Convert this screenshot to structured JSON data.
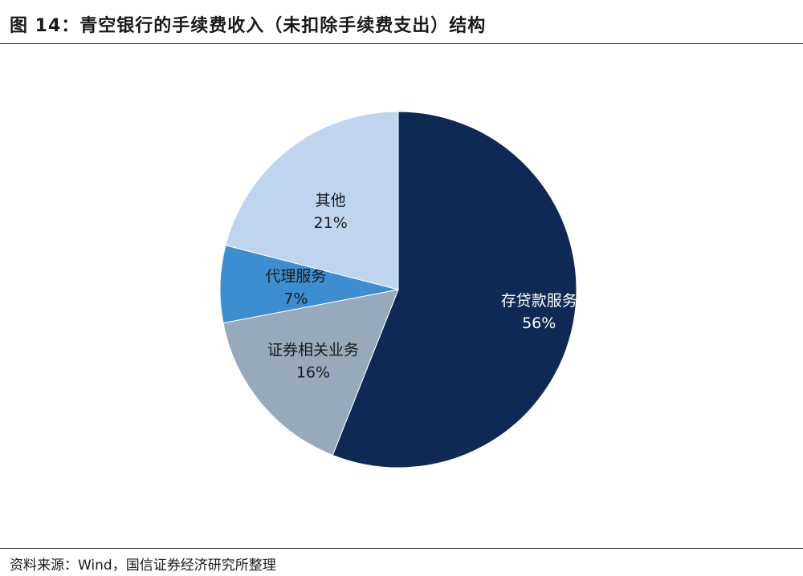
{
  "title": "图 14：青空银行的手续费收入（未扣除手续费支出）结构",
  "source": "资料来源：Wind，国信证券经济研究所整理",
  "chart_data": {
    "type": "pie",
    "title": "图 14：青空银行的手续费收入（未扣除手续费支出）结构",
    "slices": [
      {
        "label": "存贷款服务",
        "value": 56,
        "value_label": "56%",
        "color": "#0e2a54",
        "text_color": "#ffffff"
      },
      {
        "label": "证券相关业务",
        "value": 16,
        "value_label": "16%",
        "color": "#98a9bb",
        "text_color": "#1a1a1a"
      },
      {
        "label": "代理服务",
        "value": 7,
        "value_label": "7%",
        "color": "#3d8ed0",
        "text_color": "#1a1a1a"
      },
      {
        "label": "其他",
        "value": 21,
        "value_label": "21%",
        "color": "#bfd5ef",
        "text_color": "#1a1a1a"
      }
    ],
    "legend": "none"
  }
}
